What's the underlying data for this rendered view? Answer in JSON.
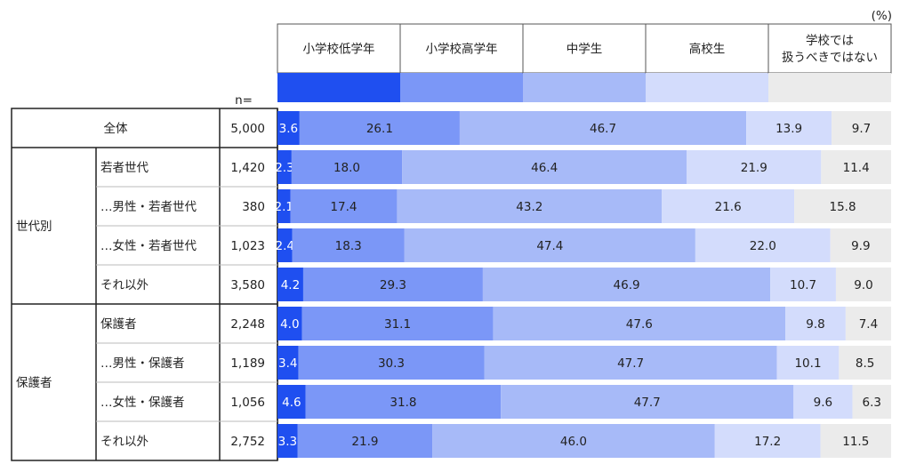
{
  "unit_label": "(%)",
  "n_label": "n=",
  "chart_data": {
    "type": "bar",
    "stacked": true,
    "orientation": "horizontal",
    "series": [
      {
        "name": "小学校低学年",
        "color": "#1f4ff0"
      },
      {
        "name": "小学校高学年",
        "color": "#7b97f7"
      },
      {
        "name": "中学生",
        "color": "#a7baf8"
      },
      {
        "name": "高校生",
        "color": "#d3dcfc"
      },
      {
        "name": "学校では\n扱うべきではない",
        "color": "#ebebeb"
      }
    ],
    "groups": [
      {
        "label": "",
        "rows": [
          0
        ]
      },
      {
        "label": "世代別",
        "rows": [
          1,
          2,
          3,
          4
        ]
      },
      {
        "label": "保護者",
        "rows": [
          5,
          6,
          7,
          8
        ]
      }
    ],
    "rows": [
      {
        "label": "全体",
        "n": "5,000",
        "values": [
          3.6,
          26.1,
          46.7,
          13.9,
          9.7
        ]
      },
      {
        "label": "若者世代",
        "n": "1,420",
        "values": [
          2.3,
          18.0,
          46.4,
          21.9,
          11.4
        ]
      },
      {
        "label": "…男性・若者世代",
        "n": "380",
        "values": [
          2.1,
          17.4,
          43.2,
          21.6,
          15.8
        ]
      },
      {
        "label": "…女性・若者世代",
        "n": "1,023",
        "values": [
          2.4,
          18.3,
          47.4,
          22.0,
          9.9
        ]
      },
      {
        "label": "それ以外",
        "n": "3,580",
        "values": [
          4.2,
          29.3,
          46.9,
          10.7,
          9.0
        ]
      },
      {
        "label": "保護者",
        "n": "2,248",
        "values": [
          4.0,
          31.1,
          47.6,
          9.8,
          7.4
        ]
      },
      {
        "label": "…男性・保護者",
        "n": "1,189",
        "values": [
          3.4,
          30.3,
          47.7,
          10.1,
          8.5
        ]
      },
      {
        "label": "…女性・保護者",
        "n": "1,056",
        "values": [
          4.6,
          31.8,
          47.7,
          9.6,
          6.3
        ]
      },
      {
        "label": "それ以外",
        "n": "2,752",
        "values": [
          3.3,
          21.9,
          46.0,
          17.2,
          11.5
        ]
      }
    ]
  }
}
